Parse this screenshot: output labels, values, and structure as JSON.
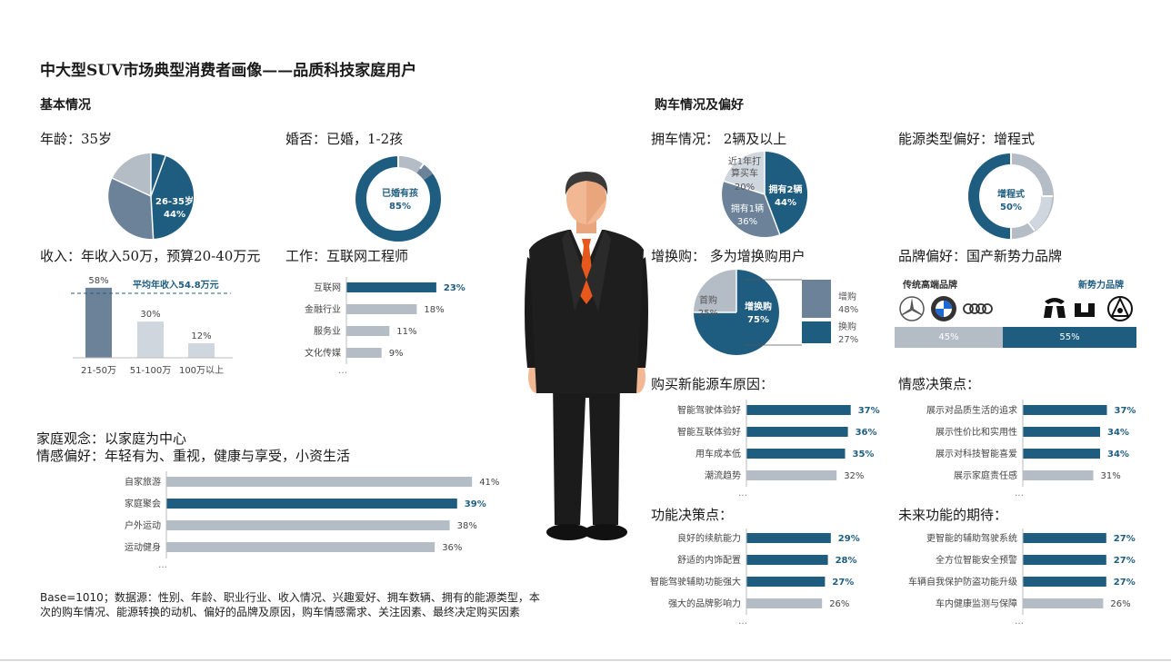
{
  "title": "中大型SUV市场典型消费者画像——品质科技家庭用户",
  "sections": {
    "basic": "基本情况",
    "purchase": "购车情况及偏好"
  },
  "colors": {
    "dark": "#1f5d80",
    "mid": "#6b8299",
    "light": "#b4bcc6",
    "lightest": "#cfd6de"
  },
  "age": {
    "label": "年龄：35岁",
    "pie_label": "26-35岁",
    "pie_value": "44%"
  },
  "marriage": {
    "label": "婚否：已婚，1-2孩",
    "donut_label": "已婚有孩",
    "donut_value": "85%"
  },
  "income": {
    "label": "收入：年收入50万，预算20-40万元",
    "avg_label": "平均年收入54.8万元",
    "chart_data": {
      "type": "bar",
      "categories": [
        "21-50万",
        "51-100万",
        "100万以上"
      ],
      "values": [
        58,
        30,
        12
      ],
      "value_labels": [
        "58%",
        "30%",
        "12%"
      ]
    }
  },
  "job": {
    "label": "工作：互联网工程师",
    "chart_data": {
      "type": "bar",
      "categories": [
        "互联网",
        "金融行业",
        "服务业",
        "文化传媒"
      ],
      "values": [
        23,
        18,
        11,
        9
      ],
      "value_labels": [
        "23%",
        "18%",
        "11%",
        "9%"
      ]
    },
    "more": "…"
  },
  "family": {
    "line1": "家庭观念：以家庭为中心",
    "line2": "情感偏好：年轻有为、重视，健康与享受，小资生活",
    "chart_data": {
      "type": "bar",
      "categories": [
        "自家旅游",
        "家庭聚会",
        "户外运动",
        "运动健身"
      ],
      "values": [
        41,
        39,
        38,
        36
      ],
      "value_labels": [
        "41%",
        "39%",
        "38%",
        "36%"
      ]
    },
    "more": "…"
  },
  "base_note": "Base=1010；数据源：性别、年龄、职业行业、收入情况、兴趣爱好、拥车数辆、拥有的能源类型，本次的购车情况、能源转换的动机、偏好的品牌及原因，购车情感需求、关注因素、最终决定购买因素",
  "ownership": {
    "label": "拥车情况：  2辆及以上",
    "s1_label": "拥有2辆",
    "s1_value": "44%",
    "s2_label": "拥有1辆",
    "s2_value": "36%",
    "s3_label1": "近1年打",
    "s3_label2": "算买车",
    "s3_value": "20%"
  },
  "energy": {
    "label": "能源类型偏好：增程式",
    "donut_label": "增程式",
    "donut_value": "50%"
  },
  "replace": {
    "label": "增换购：  多为增换购用户",
    "pie_label": "增换购",
    "pie_value": "75%",
    "first_label": "首购",
    "first_value": "25%",
    "add_label": "增购",
    "add_value": "48%",
    "swap_label": "换购",
    "swap_value": "27%"
  },
  "brand": {
    "label": "品牌偏好：国产新势力品牌",
    "traditional": "传统高端品牌",
    "new_force": "新势力品牌",
    "left_pct": "45%",
    "right_pct": "55%",
    "logos_left": [
      "mercedes-logo",
      "bmw-logo",
      "audi-logo"
    ],
    "logos_right": [
      "nio-logo",
      "li-auto-logo",
      "seres-logo"
    ]
  },
  "nev_reasons": {
    "label": "购买新能源车原因：",
    "chart_data": {
      "type": "bar",
      "categories": [
        "智能驾驶体验好",
        "智能互联体验好",
        "用车成本低",
        "潮流趋势"
      ],
      "values": [
        37,
        36,
        35,
        32
      ],
      "value_labels": [
        "37%",
        "36%",
        "35%",
        "32%"
      ]
    },
    "more": "…"
  },
  "emotion": {
    "label": "情感决策点：",
    "chart_data": {
      "type": "bar",
      "categories": [
        "展示对品质生活的追求",
        "展示性价比和实用性",
        "展示对科技智能喜爱",
        "展示家庭责任感"
      ],
      "values": [
        37,
        34,
        34,
        31
      ],
      "value_labels": [
        "37%",
        "34%",
        "34%",
        "31%"
      ]
    },
    "more": "…"
  },
  "function": {
    "label": "功能决策点：",
    "chart_data": {
      "type": "bar",
      "categories": [
        "良好的续航能力",
        "舒适的内饰配置",
        "智能驾驶辅助功能强大",
        "强大的品牌影响力"
      ],
      "values": [
        29,
        28,
        27,
        26
      ],
      "value_labels": [
        "29%",
        "28%",
        "27%",
        "26%"
      ]
    },
    "more": "…"
  },
  "future": {
    "label": "未来功能的期待：",
    "chart_data": {
      "type": "bar",
      "categories": [
        "更智能的辅助驾驶系统",
        "全方位智能安全预警",
        "车辆自我保护防盗功能升级",
        "车内健康监测与保障"
      ],
      "values": [
        27,
        27,
        27,
        26
      ],
      "value_labels": [
        "27%",
        "27%",
        "27%",
        "26%"
      ]
    },
    "more": "…"
  }
}
